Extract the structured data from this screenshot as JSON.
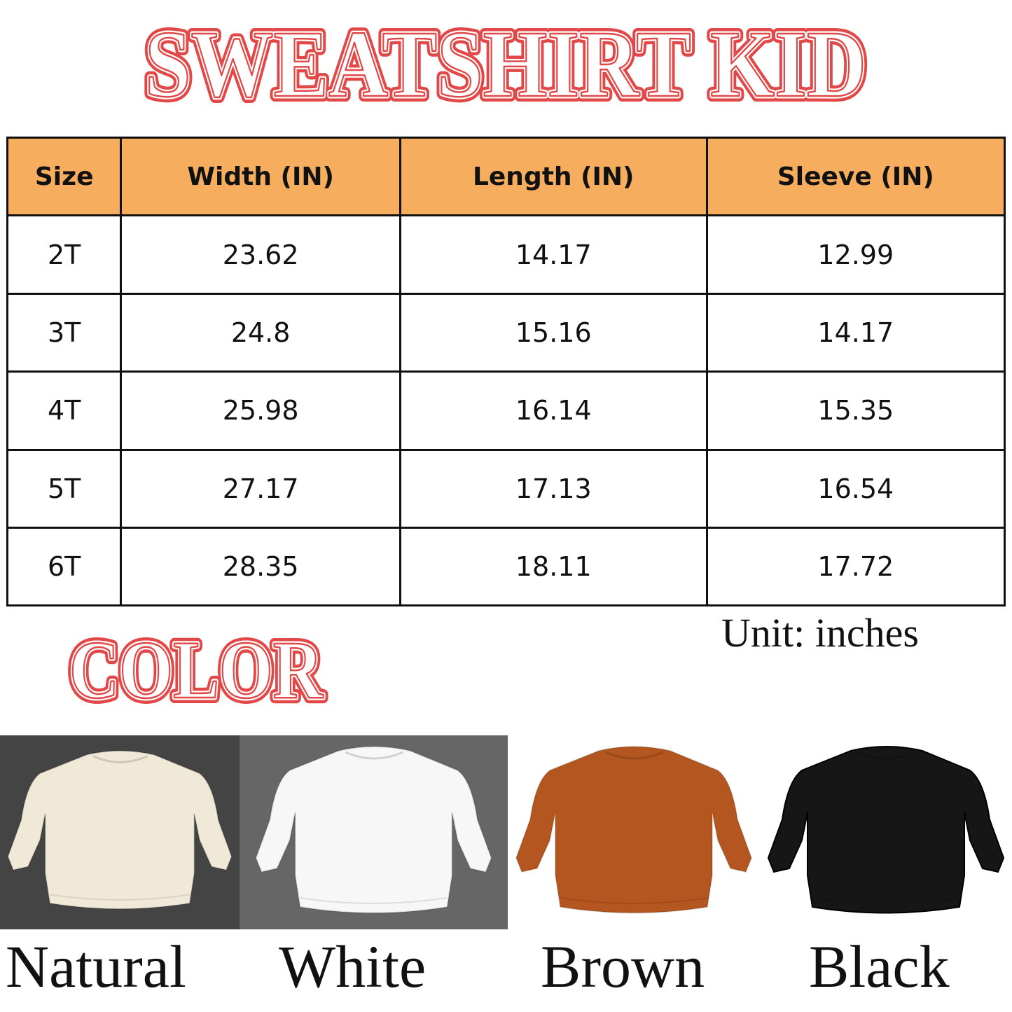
{
  "title": "SWEATSHIRT KID",
  "colors": {
    "title_red": "#e24848",
    "header_orange": "#f6ad5e"
  },
  "table": {
    "headers": [
      "Size",
      "Width (IN)",
      "Length (IN)",
      "Sleeve (IN)"
    ],
    "rows": [
      [
        "2T",
        "23.62",
        "14.17",
        "12.99"
      ],
      [
        "3T",
        "24.8",
        "15.16",
        "14.17"
      ],
      [
        "4T",
        "25.98",
        "16.14",
        "15.35"
      ],
      [
        "5T",
        "27.17",
        "17.13",
        "16.54"
      ],
      [
        "6T",
        "28.35",
        "18.11",
        "17.72"
      ]
    ]
  },
  "unit_note": "Unit: inches",
  "color_heading": "COLOR",
  "swatches": [
    {
      "label": "Natural",
      "fabric": "#f1e9d8",
      "background": "#444444"
    },
    {
      "label": "White",
      "fabric": "#f7f7f7",
      "background": "#666666"
    },
    {
      "label": "Brown",
      "fabric": "#b4561f",
      "background": "#ffffff"
    },
    {
      "label": "Black",
      "fabric": "#161616",
      "background": "#ffffff"
    }
  ]
}
